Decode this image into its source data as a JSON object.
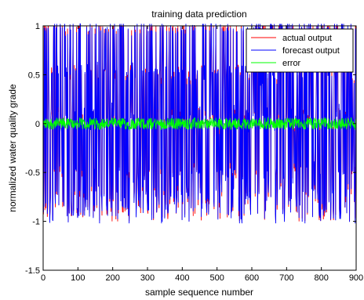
{
  "chart_data": {
    "type": "line",
    "title": "training data prediction",
    "xlabel": "sample sequence number",
    "ylabel": "normalized water quality grade",
    "xlim": [
      0,
      900
    ],
    "ylim": [
      -1.5,
      1
    ],
    "xticks": [
      0,
      100,
      200,
      300,
      400,
      500,
      600,
      700,
      800,
      900
    ],
    "yticks": [
      -1.5,
      -1,
      -0.5,
      0,
      0.5,
      1
    ],
    "xtick_labels": [
      "0",
      "100",
      "200",
      "300",
      "400",
      "500",
      "600",
      "700",
      "800",
      "900"
    ],
    "ytick_labels": [
      "-1.5",
      "-1",
      "-0.5",
      "0",
      "0.5",
      "1"
    ],
    "grid": false,
    "legend_position": "top-right",
    "series": [
      {
        "name": "actual output",
        "color": "#ff0000",
        "n_points": 900,
        "value_range": [
          -1,
          1
        ],
        "distribution": "rapidly alternating values concentrated near -0.7, 0, 0.5 and 1"
      },
      {
        "name": "forecast output",
        "color": "#0000ff",
        "n_points": 900,
        "value_range": [
          -1,
          1
        ],
        "distribution": "closely tracks actual output"
      },
      {
        "name": "error",
        "color": "#00ff00",
        "n_points": 900,
        "value_range": [
          -0.1,
          0.1
        ],
        "distribution": "noise around 0"
      }
    ]
  }
}
